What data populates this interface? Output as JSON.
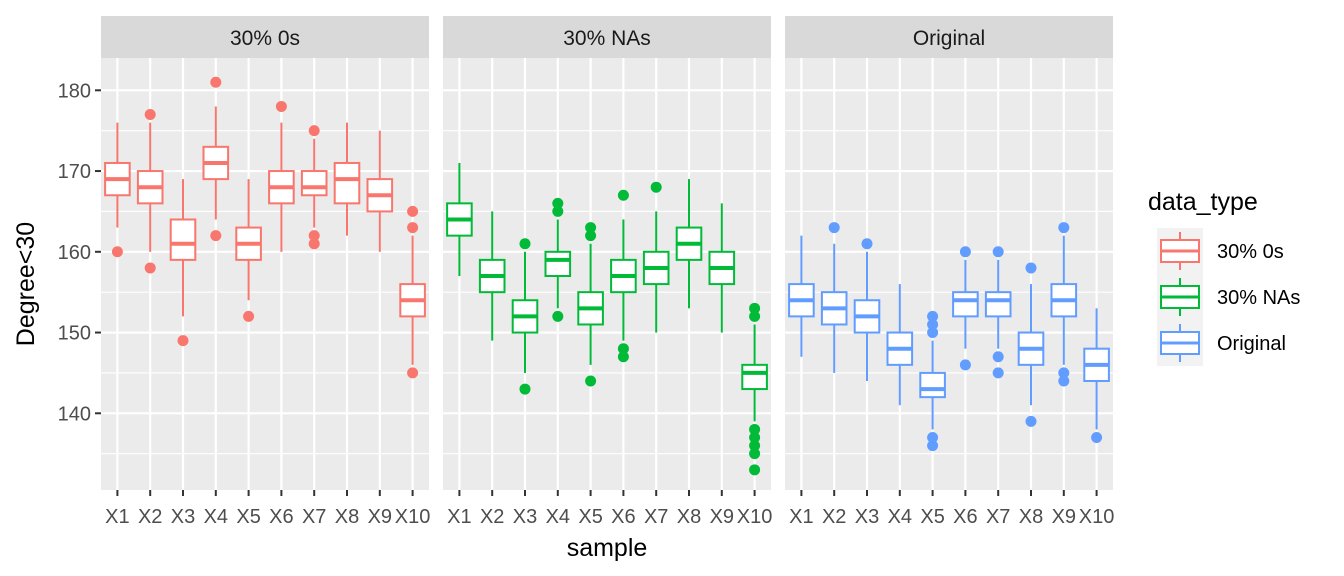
{
  "chart_data": {
    "type": "boxplot",
    "ylabel": "Degree<30",
    "xlabel": "sample",
    "ylim": [
      130.5,
      184
    ],
    "yticks": [
      140,
      150,
      160,
      170,
      180
    ],
    "grid": true,
    "categories": [
      "X1",
      "X2",
      "X3",
      "X4",
      "X5",
      "X6",
      "X7",
      "X8",
      "X9",
      "X10"
    ],
    "legend": {
      "title": "data_type",
      "position": "right",
      "entries": [
        "30% 0s",
        "30% NAs",
        "Original"
      ]
    },
    "colors": {
      "30% 0s": "#F8766D",
      "30% NAs": "#00BA38",
      "Original": "#619CFF"
    },
    "panels": [
      {
        "label": "30% 0s",
        "series": "30% 0s",
        "boxes": [
          {
            "x": "X1",
            "lower_whisker": 163,
            "q1": 167,
            "median": 169,
            "q3": 171,
            "upper_whisker": 176,
            "outliers": [
              160
            ]
          },
          {
            "x": "X2",
            "lower_whisker": 160,
            "q1": 166,
            "median": 168,
            "q3": 170,
            "upper_whisker": 176,
            "outliers": [
              158,
              177
            ]
          },
          {
            "x": "X3",
            "lower_whisker": 152,
            "q1": 159,
            "median": 161,
            "q3": 164,
            "upper_whisker": 169,
            "outliers": [
              149
            ]
          },
          {
            "x": "X4",
            "lower_whisker": 164,
            "q1": 169,
            "median": 171,
            "q3": 173,
            "upper_whisker": 178,
            "outliers": [
              162,
              181
            ]
          },
          {
            "x": "X5",
            "lower_whisker": 154,
            "q1": 159,
            "median": 161,
            "q3": 163,
            "upper_whisker": 169,
            "outliers": [
              152
            ]
          },
          {
            "x": "X6",
            "lower_whisker": 160,
            "q1": 166,
            "median": 168,
            "q3": 170,
            "upper_whisker": 176,
            "outliers": [
              178
            ]
          },
          {
            "x": "X7",
            "lower_whisker": 163,
            "q1": 167,
            "median": 168,
            "q3": 170,
            "upper_whisker": 174,
            "outliers": [
              161,
              162,
              175
            ]
          },
          {
            "x": "X8",
            "lower_whisker": 162,
            "q1": 166,
            "median": 169,
            "q3": 171,
            "upper_whisker": 176,
            "outliers": []
          },
          {
            "x": "X9",
            "lower_whisker": 160,
            "q1": 165,
            "median": 167,
            "q3": 169,
            "upper_whisker": 175,
            "outliers": []
          },
          {
            "x": "X10",
            "lower_whisker": 146,
            "q1": 152,
            "median": 154,
            "q3": 156,
            "upper_whisker": 162,
            "outliers": [
              145,
              163,
              165
            ]
          }
        ]
      },
      {
        "label": "30% NAs",
        "series": "30% NAs",
        "boxes": [
          {
            "x": "X1",
            "lower_whisker": 157,
            "q1": 162,
            "median": 164,
            "q3": 166,
            "upper_whisker": 171,
            "outliers": []
          },
          {
            "x": "X2",
            "lower_whisker": 149,
            "q1": 155,
            "median": 157,
            "q3": 159,
            "upper_whisker": 165,
            "outliers": []
          },
          {
            "x": "X3",
            "lower_whisker": 145,
            "q1": 150,
            "median": 152,
            "q3": 154,
            "upper_whisker": 160,
            "outliers": [
              143,
              161
            ]
          },
          {
            "x": "X4",
            "lower_whisker": 153,
            "q1": 157,
            "median": 159,
            "q3": 160,
            "upper_whisker": 164,
            "outliers": [
              152,
              165,
              166
            ]
          },
          {
            "x": "X5",
            "lower_whisker": 146,
            "q1": 151,
            "median": 153,
            "q3": 155,
            "upper_whisker": 161,
            "outliers": [
              144,
              162,
              163
            ]
          },
          {
            "x": "X6",
            "lower_whisker": 149,
            "q1": 155,
            "median": 157,
            "q3": 159,
            "upper_whisker": 164,
            "outliers": [
              147,
              148,
              167
            ]
          },
          {
            "x": "X7",
            "lower_whisker": 150,
            "q1": 156,
            "median": 158,
            "q3": 160,
            "upper_whisker": 165,
            "outliers": [
              168
            ]
          },
          {
            "x": "X8",
            "lower_whisker": 153,
            "q1": 159,
            "median": 161,
            "q3": 163,
            "upper_whisker": 169,
            "outliers": []
          },
          {
            "x": "X9",
            "lower_whisker": 150,
            "q1": 156,
            "median": 158,
            "q3": 160,
            "upper_whisker": 166,
            "outliers": []
          },
          {
            "x": "X10",
            "lower_whisker": 139,
            "q1": 143,
            "median": 145,
            "q3": 146,
            "upper_whisker": 151,
            "outliers": [
              133,
              135,
              136,
              137,
              138,
              152,
              153
            ]
          }
        ]
      },
      {
        "label": "Original",
        "series": "Original",
        "boxes": [
          {
            "x": "X1",
            "lower_whisker": 147,
            "q1": 152,
            "median": 154,
            "q3": 156,
            "upper_whisker": 162,
            "outliers": []
          },
          {
            "x": "X2",
            "lower_whisker": 145,
            "q1": 151,
            "median": 153,
            "q3": 155,
            "upper_whisker": 161,
            "outliers": [
              163
            ]
          },
          {
            "x": "X3",
            "lower_whisker": 144,
            "q1": 150,
            "median": 152,
            "q3": 154,
            "upper_whisker": 160,
            "outliers": [
              161
            ]
          },
          {
            "x": "X4",
            "lower_whisker": 141,
            "q1": 146,
            "median": 148,
            "q3": 150,
            "upper_whisker": 156,
            "outliers": []
          },
          {
            "x": "X5",
            "lower_whisker": 138,
            "q1": 142,
            "median": 143,
            "q3": 145,
            "upper_whisker": 149,
            "outliers": [
              136,
              137,
              150,
              151,
              152
            ]
          },
          {
            "x": "X6",
            "lower_whisker": 148,
            "q1": 152,
            "median": 154,
            "q3": 155,
            "upper_whisker": 159,
            "outliers": [
              146,
              160
            ]
          },
          {
            "x": "X7",
            "lower_whisker": 148,
            "q1": 152,
            "median": 154,
            "q3": 155,
            "upper_whisker": 159,
            "outliers": [
              145,
              147,
              160
            ]
          },
          {
            "x": "X8",
            "lower_whisker": 141,
            "q1": 146,
            "median": 148,
            "q3": 150,
            "upper_whisker": 156,
            "outliers": [
              139,
              158
            ]
          },
          {
            "x": "X9",
            "lower_whisker": 146,
            "q1": 152,
            "median": 154,
            "q3": 156,
            "upper_whisker": 162,
            "outliers": [
              144,
              145,
              163
            ]
          },
          {
            "x": "X10",
            "lower_whisker": 138,
            "q1": 144,
            "median": 146,
            "q3": 148,
            "upper_whisker": 153,
            "outliers": [
              137
            ]
          }
        ]
      }
    ]
  }
}
